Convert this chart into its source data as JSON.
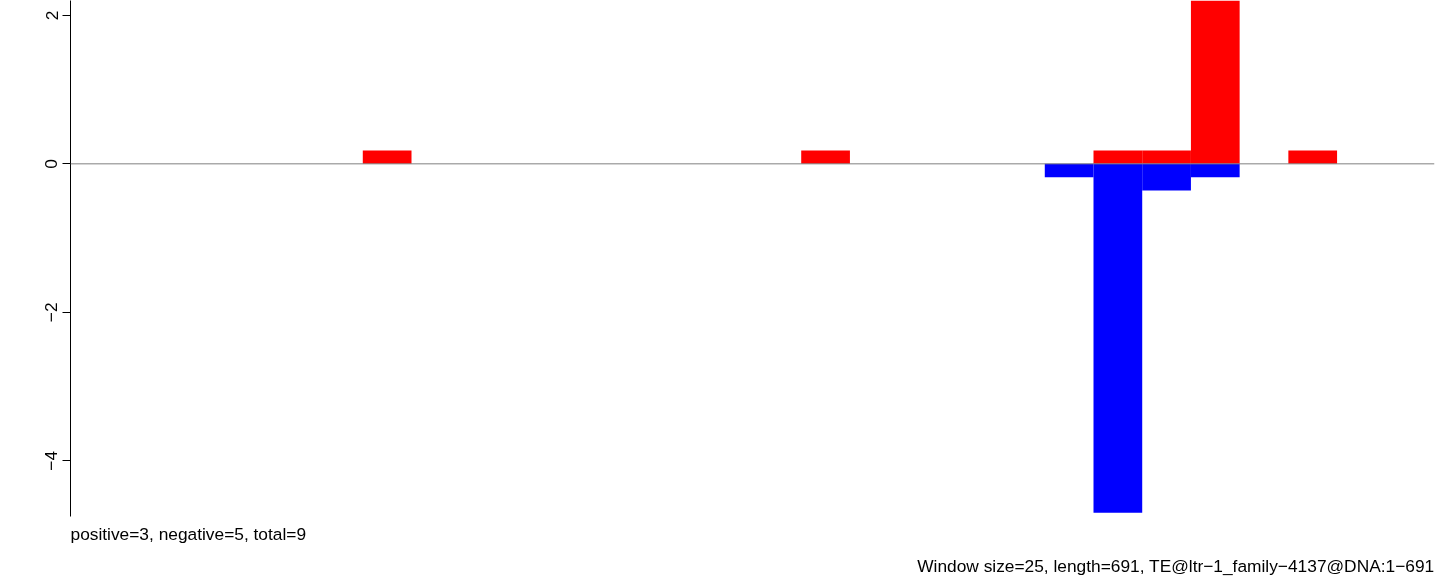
{
  "chart_data": {
    "type": "bar",
    "categories": [
      null,
      null,
      null,
      null,
      null,
      null,
      null,
      null,
      null,
      null,
      null,
      null,
      null,
      null,
      null,
      null,
      null,
      null,
      null,
      null,
      null,
      null,
      null,
      null,
      null,
      null,
      null,
      null
    ],
    "series": [
      {
        "color": "#ff0000",
        "values": [
          null,
          null,
          null,
          null,
          null,
          null,
          0.18,
          null,
          null,
          null,
          null,
          null,
          null,
          null,
          null,
          0.18,
          null,
          null,
          null,
          null,
          null,
          0.18,
          0.18,
          2.2,
          null,
          0.18,
          null,
          null
        ]
      },
      {
        "color": "#0000ff",
        "values": [
          null,
          null,
          null,
          null,
          null,
          null,
          null,
          null,
          null,
          null,
          null,
          null,
          null,
          null,
          null,
          null,
          null,
          null,
          null,
          null,
          -0.18,
          -4.7,
          -0.36,
          -0.18,
          null,
          null,
          null,
          null
        ]
      }
    ],
    "ylim": [
      -4.75,
      2.2
    ],
    "yticks": [
      -4,
      -2,
      0,
      2
    ],
    "grid": false,
    "tick_labels": "y",
    "ref_lines": [
      {
        "axis": "y",
        "value": 0,
        "color": "#808080"
      }
    ],
    "annotations": [
      "positive=3, negative=5, total=9",
      "Window size=25, length=691, TE@ltr−1_family−4137@DNA:1−691"
    ]
  }
}
